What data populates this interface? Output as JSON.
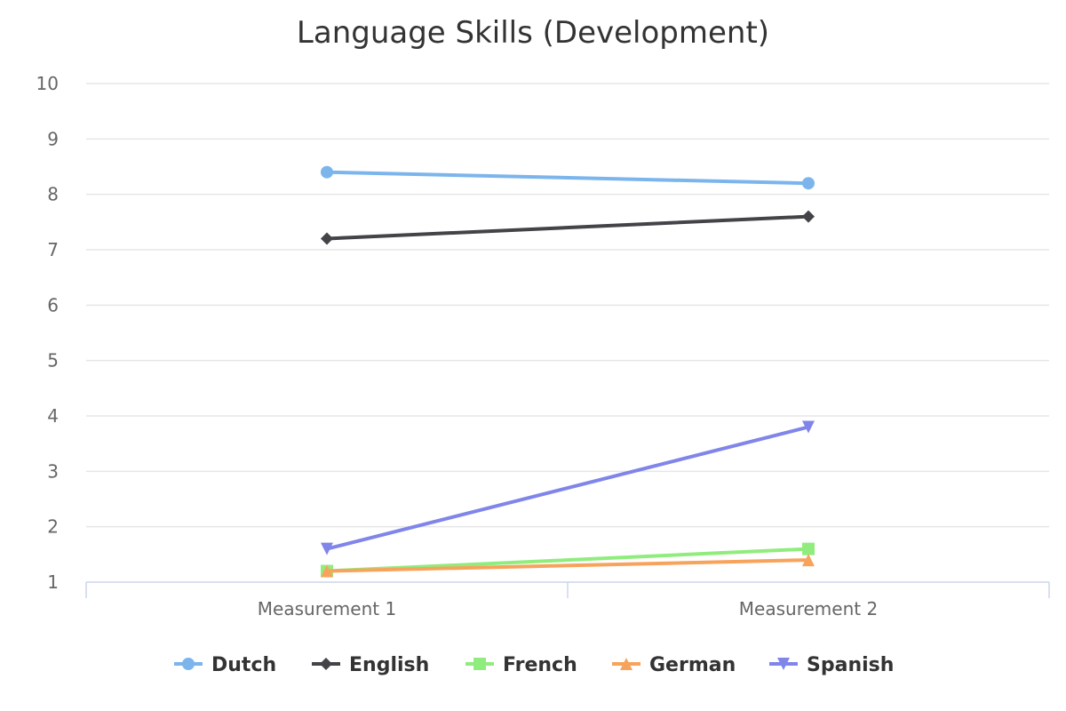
{
  "chart_data": {
    "type": "line",
    "title": "Language Skills (Development)",
    "categories": [
      "Measurement 1",
      "Measurement 2"
    ],
    "ylim": [
      1,
      10
    ],
    "yticks": [
      1,
      2,
      3,
      4,
      5,
      6,
      7,
      8,
      9,
      10
    ],
    "grid": true,
    "legend_position": "bottom-center",
    "series": [
      {
        "name": "Dutch",
        "color": "#7cb5ec",
        "marker": "circle",
        "values": [
          8.4,
          8.2
        ]
      },
      {
        "name": "English",
        "color": "#434348",
        "marker": "diamond",
        "values": [
          7.2,
          7.6
        ]
      },
      {
        "name": "French",
        "color": "#90ed7d",
        "marker": "square",
        "values": [
          1.2,
          1.6
        ]
      },
      {
        "name": "German",
        "color": "#f7a35c",
        "marker": "triangle",
        "values": [
          1.2,
          1.4
        ]
      },
      {
        "name": "Spanish",
        "color": "#8085e9",
        "marker": "triangle-down",
        "values": [
          1.6,
          3.8
        ]
      }
    ]
  }
}
